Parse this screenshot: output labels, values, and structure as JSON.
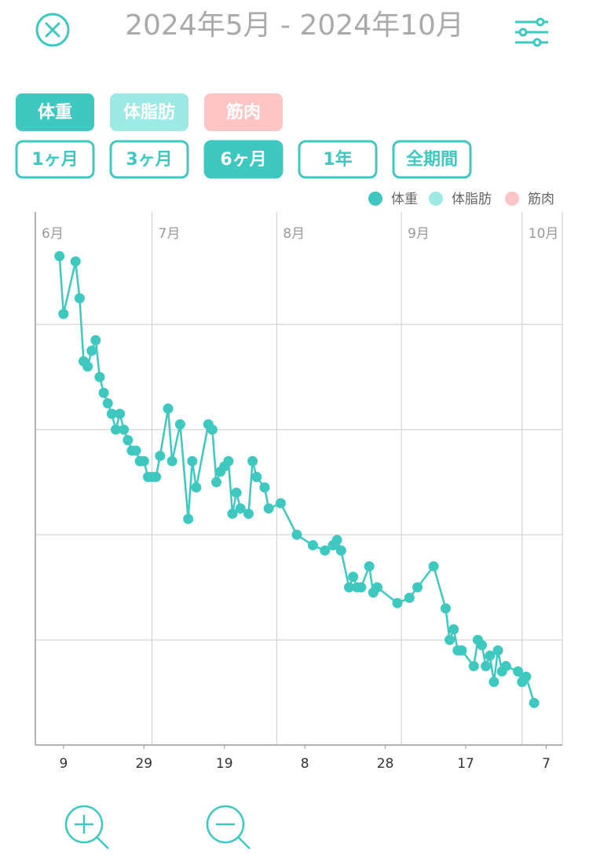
{
  "header": {
    "title": "2024年5月 - 2024年10月"
  },
  "metric_tabs": [
    {
      "label": "体重",
      "color": "#3ec8c0"
    },
    {
      "label": "体脂肪",
      "color": "#9deae5"
    },
    {
      "label": "筋肉",
      "color": "#ffc4c4"
    }
  ],
  "period_buttons": [
    "1ヶ月",
    "3ヶ月",
    "6ヶ月",
    "1年",
    "全期間"
  ],
  "selected_period": 2,
  "chart_data": {
    "type": "line",
    "x": [
      8,
      9,
      12,
      13,
      14,
      15,
      16,
      17,
      18,
      19,
      20,
      21,
      22,
      23,
      24,
      25,
      26,
      27,
      28,
      29,
      30,
      31,
      32,
      33,
      35,
      36,
      38,
      40,
      41,
      42,
      45,
      46,
      47,
      48,
      49,
      50,
      51,
      52,
      53,
      55,
      56,
      57,
      59,
      60,
      63,
      67,
      71,
      74,
      76,
      77,
      78,
      80,
      81,
      82,
      83,
      85,
      86,
      87,
      92,
      95,
      97,
      101,
      104,
      105,
      106,
      107,
      108,
      111,
      112,
      113,
      114,
      115,
      116,
      117,
      118,
      119,
      122,
      123,
      124,
      126
    ],
    "series": [
      {
        "name": "体重",
        "color": "#3ec8c0",
        "values": [
          4.65,
          4.1,
          4.6,
          4.25,
          3.65,
          3.6,
          3.75,
          3.85,
          3.5,
          3.35,
          3.25,
          3.15,
          3.0,
          3.15,
          3.0,
          2.9,
          2.8,
          2.8,
          2.7,
          2.7,
          2.55,
          2.55,
          2.55,
          2.75,
          3.2,
          2.7,
          3.05,
          2.15,
          2.7,
          2.45,
          3.05,
          3.0,
          2.5,
          2.6,
          2.65,
          2.7,
          2.2,
          2.4,
          2.25,
          2.2,
          2.7,
          2.55,
          2.45,
          2.25,
          2.3,
          2.0,
          1.9,
          1.85,
          1.9,
          1.95,
          1.85,
          1.5,
          1.6,
          1.5,
          1.5,
          1.7,
          1.45,
          1.5,
          1.35,
          1.4,
          1.5,
          1.7,
          1.3,
          1.0,
          1.1,
          0.9,
          0.9,
          0.75,
          1.0,
          0.95,
          0.75,
          0.85,
          0.6,
          0.9,
          0.7,
          0.75,
          0.7,
          0.6,
          0.65,
          0.4
        ]
      }
    ],
    "legend_extra": [
      {
        "name": "体脂肪",
        "color": "#9deae5"
      },
      {
        "name": "筋肉",
        "color": "#ffc4c4"
      }
    ],
    "xlim": [
      2,
      133
    ],
    "xticks": [
      9,
      29,
      {
        "value": 49,
        "label": "19"
      },
      {
        "value": 69,
        "label": "8"
      },
      {
        "value": 89,
        "label": "28"
      },
      {
        "value": 109,
        "label": "17"
      },
      {
        "value": 129,
        "label": "7"
      }
    ],
    "month_ticks": [
      {
        "value": 1,
        "label": "6月"
      },
      {
        "value": 31,
        "label": "7月"
      },
      {
        "value": 62,
        "label": "8月"
      },
      {
        "value": 93,
        "label": "9月"
      },
      {
        "value": 123,
        "label": "10月"
      }
    ],
    "ylim": [
      0,
      5.07
    ],
    "yticks": [
      1,
      2,
      3,
      4
    ],
    "grid": true
  }
}
